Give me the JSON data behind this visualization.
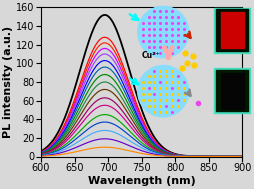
{
  "xlabel": "Wavelength (nm)",
  "ylabel": "PL intensity (a.u.)",
  "xlim": [
    600,
    900
  ],
  "ylim": [
    0,
    160
  ],
  "yticks": [
    0,
    20,
    40,
    60,
    80,
    100,
    120,
    140,
    160
  ],
  "xticks": [
    600,
    650,
    700,
    750,
    800,
    850,
    900
  ],
  "peak_wavelength": 695,
  "peak_sigma": 37,
  "peak_heights": [
    152,
    128,
    122,
    116,
    110,
    103,
    96,
    88,
    80,
    72,
    63,
    55,
    45,
    37,
    28,
    19,
    10
  ],
  "line_colors": [
    "#000000",
    "#ff0000",
    "#ff2200",
    "#cc00ff",
    "#9944ff",
    "#0000ff",
    "#0066aa",
    "#008800",
    "#228844",
    "#663300",
    "#990066",
    "#cc0088",
    "#00aa00",
    "#0044cc",
    "#44aaff",
    "#6600cc",
    "#ff8800"
  ],
  "bg_color": "#d8d8d8",
  "xlabel_fontsize": 8,
  "ylabel_fontsize": 8,
  "tick_fontsize": 7,
  "inset_circle_top_color": "#dd88ff",
  "inset_circle_bg": "#88ddff",
  "inset_dot_top": "#ee44ee",
  "inset_dot_bottom_yellow": "#ffcc00",
  "inset_dot_bottom_magenta": "#ee44ee",
  "cu_arrow_color": "#ffaaaa",
  "cyan_arrow": "#00ffff",
  "red_arrow": "#cc2200",
  "gray_arrow": "#888888"
}
